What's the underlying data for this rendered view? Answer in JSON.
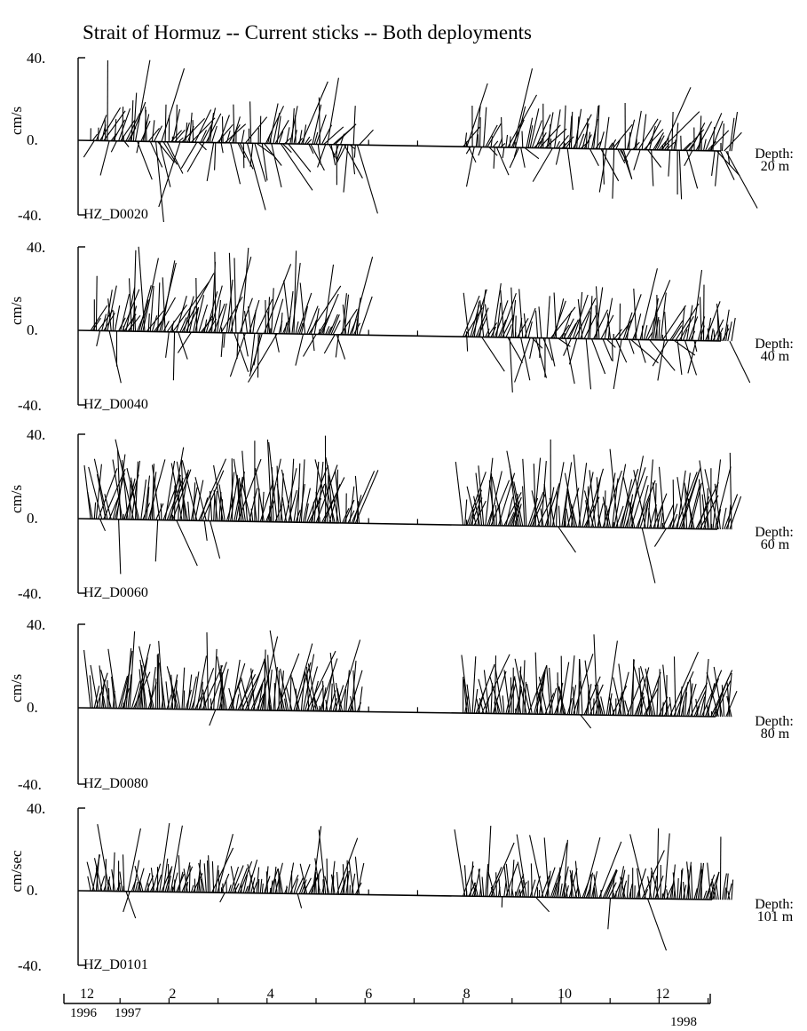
{
  "chart_data": {
    "type": "stick",
    "title": "Strait of Hormuz -- Current sticks -- Both deployments",
    "time_axis": {
      "month_labels": [
        "12",
        "2",
        "4",
        "6",
        "8",
        "10",
        "12"
      ],
      "year_labels": [
        "1996",
        "1997",
        "1998"
      ],
      "start": "1996-12",
      "end": "1998-01"
    },
    "deployments": [
      {
        "start_month": 0.4,
        "end_month": 5.9
      },
      {
        "start_month": 8.0,
        "end_month": 13.5
      }
    ],
    "panels": [
      {
        "station": "HZ_D0020",
        "depth_label": "Depth:",
        "depth_value": "20 m",
        "ylabel": "cm/s",
        "ytick_labels": [
          "40.",
          "0.",
          "-40."
        ],
        "ylim": [
          -40,
          40
        ],
        "mean_direction_deg": 60,
        "typical_speed": 18,
        "max_speed": 42,
        "negative_fraction": 0.32
      },
      {
        "station": "HZ_D0040",
        "depth_label": "Depth:",
        "depth_value": "40 m",
        "ylabel": "cm/s",
        "ytick_labels": [
          "40.",
          "0.",
          "-40."
        ],
        "ylim": [
          -40,
          40
        ],
        "mean_direction_deg": 68,
        "typical_speed": 20,
        "max_speed": 42,
        "negative_fraction": 0.22
      },
      {
        "station": "HZ_D0060",
        "depth_label": "Depth:",
        "depth_value": "60 m",
        "ylabel": "cm/s",
        "ytick_labels": [
          "40.",
          "0.",
          "-40."
        ],
        "ylim": [
          -40,
          40
        ],
        "mean_direction_deg": 80,
        "typical_speed": 25,
        "max_speed": 42,
        "negative_fraction": 0.03
      },
      {
        "station": "HZ_D0080",
        "depth_label": "Depth:",
        "depth_value": "80 m",
        "ylabel": "cm/s",
        "ytick_labels": [
          "40.",
          "0.",
          "-40."
        ],
        "ylim": [
          -40,
          40
        ],
        "mean_direction_deg": 82,
        "typical_speed": 22,
        "max_speed": 40,
        "negative_fraction": 0.02
      },
      {
        "station": "HZ_D0101",
        "depth_label": "Depth:",
        "depth_value": "101 m",
        "ylabel": "cm/sec",
        "ytick_labels": [
          "40.",
          "0.",
          "-40."
        ],
        "ylim": [
          -40,
          40
        ],
        "mean_direction_deg": 82,
        "typical_speed": 14,
        "max_speed": 35,
        "negative_fraction": 0.03
      }
    ]
  }
}
